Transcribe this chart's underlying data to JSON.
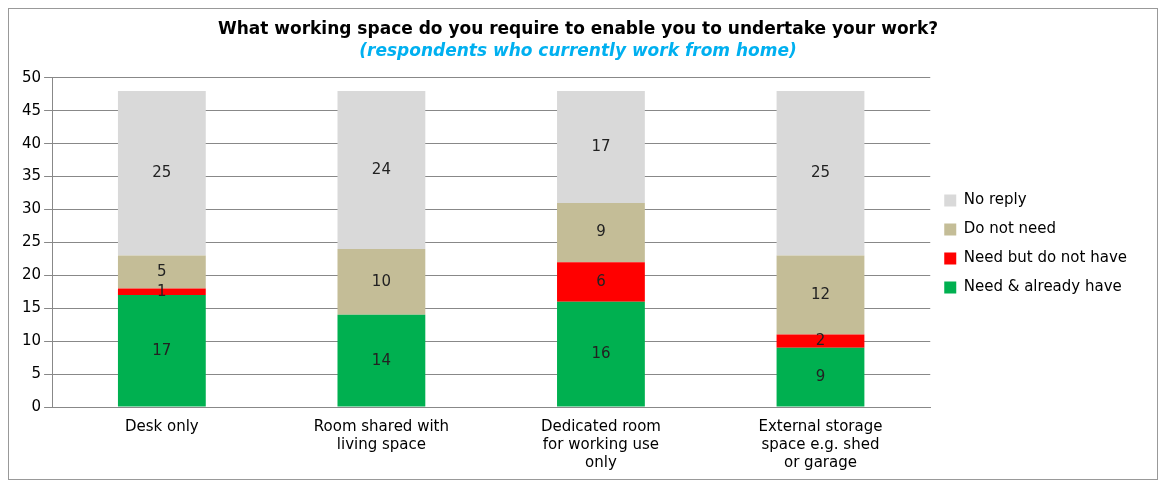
{
  "chart_data": {
    "type": "bar",
    "title": "What working space do you require to enable you to undertake your work?",
    "subtitle": "(respondents who currently work from home)",
    "categories": [
      "Desk only",
      "Room shared with living space",
      "Dedicated room for working use only",
      "External storage space e.g. shed or garage"
    ],
    "series": [
      {
        "name": "Need & already have",
        "color": "#00b050",
        "values": [
          17,
          14,
          16,
          9
        ]
      },
      {
        "name": "Need but do not have",
        "color": "#ff0000",
        "values": [
          1,
          null,
          6,
          2
        ]
      },
      {
        "name": "Do not need",
        "color": "#c4bd97",
        "values": [
          5,
          10,
          9,
          12
        ]
      },
      {
        "name": "No reply",
        "color": "#d9d9d9",
        "values": [
          25,
          24,
          17,
          25
        ]
      }
    ],
    "stacked": true,
    "ylim": [
      0,
      50
    ],
    "yticks": [
      0,
      5,
      10,
      15,
      20,
      25,
      30,
      35,
      40,
      45,
      50
    ],
    "grid": "y",
    "legend": "right",
    "data_labels": true
  }
}
